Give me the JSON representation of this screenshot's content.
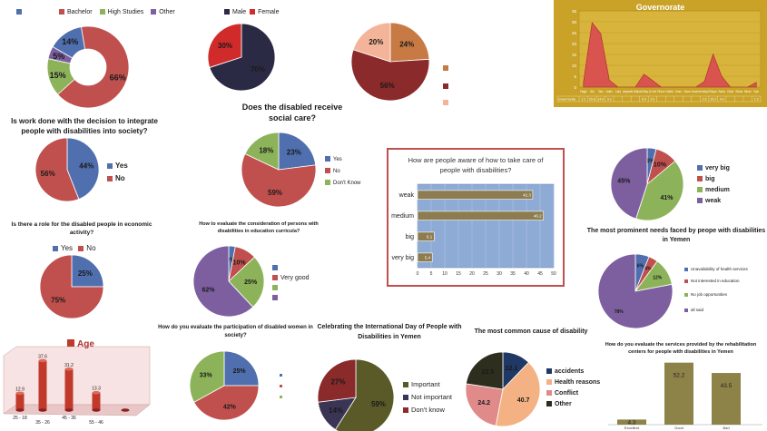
{
  "chart_data": [
    {
      "id": "education",
      "type": "pie",
      "donut": true,
      "legend": [
        "",
        "Bachelor",
        "High Studies",
        "Other"
      ],
      "slices": [
        {
          "label": "",
          "value": 14,
          "color": "#4f6fae",
          "text": "14%"
        },
        {
          "label": "Bachelor",
          "value": 66,
          "color": "#c0504d",
          "text": "66%"
        },
        {
          "label": "High Studies",
          "value": 15,
          "color": "#8db35a",
          "text": "15%"
        },
        {
          "label": "Other",
          "value": 5,
          "color": "#7d5fa0",
          "text": "5%"
        }
      ]
    },
    {
      "id": "gender",
      "type": "pie",
      "legend": [
        "Male",
        "Female"
      ],
      "slices": [
        {
          "label": "Male",
          "value": 70,
          "color": "#2a2a44",
          "text": "70%"
        },
        {
          "label": "Female",
          "value": 30,
          "color": "#d02a2a",
          "text": "30%"
        }
      ]
    },
    {
      "id": "status",
      "type": "pie",
      "slices": [
        {
          "label": "",
          "value": 24,
          "color": "#c77a44",
          "text": "24%"
        },
        {
          "label": "",
          "value": 56,
          "color": "#8b2a2a",
          "text": "56%"
        },
        {
          "label": "",
          "value": 20,
          "color": "#f4b49a",
          "text": "20%"
        }
      ]
    },
    {
      "id": "governorate",
      "type": "area",
      "title": "Governorate",
      "y_ticks": [
        0,
        5,
        10,
        15,
        20,
        25,
        30,
        35
      ],
      "ylim": [
        0,
        35
      ],
      "categories": [
        "Hajjah",
        "Ibb",
        "Taiz",
        "Aden",
        "Lahij",
        "Abyan",
        "Al Mahrah",
        "Al Bayda",
        "Al Jawf",
        "Dhamar",
        "Marib",
        "Amran",
        "Sanaa",
        "Hadramawt",
        "Al Hudaydah",
        "Raymah",
        "Sadah",
        "Al Dhale",
        "Shabwah",
        "Al Mahwit",
        "Soqatra"
      ],
      "category_labels": [
        "Hajja",
        "Ibb",
        "Taiz",
        "Aden",
        "Lahj",
        "Abyan",
        "Al Mahr",
        "Al Bay",
        "Al Jwf",
        "Dham",
        "Marib",
        "Amrn",
        "Sana",
        "Hadrm",
        "Hudyd",
        "Raym",
        "Sada",
        "Dhal",
        "Shbw",
        "Mhwt",
        "Sqtr"
      ],
      "series_label": "Governorate",
      "values": [
        2.2,
        29.6,
        24.6,
        3.2,
        0,
        0,
        0,
        5.9,
        3.0,
        0,
        0,
        0,
        0,
        0,
        2.6,
        15.2,
        4.9,
        0,
        0,
        0,
        2.2
      ],
      "table_values": [
        "2.2",
        "29.6",
        "24.6",
        "3.2",
        "",
        "",
        "",
        "5.9",
        "3.0",
        "",
        "",
        "",
        "",
        "",
        "2.6",
        "15.2",
        "4.9",
        "",
        "",
        "",
        "2.2"
      ]
    },
    {
      "id": "integrate",
      "type": "pie",
      "title": "Is work done with the decision to integrate people with disabilities into society?",
      "legend": [
        "Yes",
        "No"
      ],
      "slices": [
        {
          "label": "Yes",
          "value": 44,
          "color": "#4f6fae",
          "text": "44%"
        },
        {
          "label": "No",
          "value": 56,
          "color": "#c0504d",
          "text": "56%"
        }
      ]
    },
    {
      "id": "social_care",
      "type": "pie",
      "title": "Does the disabled receive social care?",
      "legend": [
        "Yes",
        "No",
        "Don't Know"
      ],
      "slices": [
        {
          "label": "Yes",
          "value": 23,
          "color": "#4f6fae",
          "text": "23%"
        },
        {
          "label": "No",
          "value": 59,
          "color": "#c0504d",
          "text": "59%"
        },
        {
          "label": "Don't Know",
          "value": 18,
          "color": "#8db35a",
          "text": "18%"
        }
      ]
    },
    {
      "id": "awareness",
      "type": "bar",
      "orientation": "horizontal",
      "title": "How are people aware of how to take care of people with disabilities?",
      "categories": [
        "weak",
        "medium",
        "big",
        "very big"
      ],
      "values": [
        42.3,
        46.2,
        6.1,
        5.4
      ],
      "xlim": [
        0,
        50
      ],
      "x_ticks": [
        0,
        5,
        10,
        15,
        20,
        25,
        30,
        35,
        40,
        45,
        50
      ]
    },
    {
      "id": "awareness_pie",
      "type": "pie",
      "legend": [
        "very big",
        "big",
        "medium",
        "weak"
      ],
      "slices": [
        {
          "label": "very big",
          "value": 4,
          "color": "#4f6fae",
          "text": "4%"
        },
        {
          "label": "big",
          "value": 10,
          "color": "#c0504d",
          "text": "10%"
        },
        {
          "label": "medium",
          "value": 41,
          "color": "#8db35a",
          "text": "41%"
        },
        {
          "label": "weak",
          "value": 45,
          "color": "#7d5fa0",
          "text": "45%"
        }
      ]
    },
    {
      "id": "economic",
      "type": "pie",
      "title": "Is there a role for the disabled people in economic activity?",
      "legend": [
        "Yes",
        "No"
      ],
      "slices": [
        {
          "label": "Yes",
          "value": 25,
          "color": "#4f6fae",
          "text": "25%"
        },
        {
          "label": "No",
          "value": 75,
          "color": "#c0504d",
          "text": "75%"
        }
      ]
    },
    {
      "id": "curricula",
      "type": "pie",
      "title": "How to evaluate the consideration of persons with disabilities in education curricula?",
      "legend": [
        "",
        "Very good",
        "",
        ""
      ],
      "slices": [
        {
          "label": "",
          "value": 3,
          "color": "#4f6fae",
          "text": "3%"
        },
        {
          "label": "Very good",
          "value": 10,
          "color": "#c0504d",
          "text": "10%"
        },
        {
          "label": "",
          "value": 25,
          "color": "#8db35a",
          "text": "25%"
        },
        {
          "label": "",
          "value": 62,
          "color": "#7d5fa0",
          "text": "62%"
        }
      ]
    },
    {
      "id": "needs",
      "type": "pie",
      "title": "The most prominent needs faced by peope with disabilities in Yemen",
      "legend": [
        "Unavailability of health services",
        "Not interested in education",
        "No job opportunities",
        "all said"
      ],
      "slices": [
        {
          "label": "Unavailability of health services",
          "value": 6,
          "color": "#4f6fae",
          "text": "6%"
        },
        {
          "label": "Not interested in education",
          "value": 4,
          "color": "#c0504d",
          "text": "4%"
        },
        {
          "label": "No job opportunities",
          "value": 12,
          "color": "#8db35a",
          "text": "12%"
        },
        {
          "label": "all said",
          "value": 78,
          "color": "#7d5fa0",
          "text": "78%"
        }
      ]
    },
    {
      "id": "age",
      "type": "bar",
      "title": "Age",
      "categories": [
        "25 - 18",
        "35 - 26",
        "45 - 36",
        "55 - 46",
        ""
      ],
      "values": [
        12.9,
        37.6,
        31.2,
        13.3,
        0
      ]
    },
    {
      "id": "women",
      "type": "pie",
      "title": "How do you evaluate the participation of disabled women in society?",
      "slices": [
        {
          "label": "",
          "value": 25,
          "color": "#4f6fae",
          "text": "25%"
        },
        {
          "label": "",
          "value": 42,
          "color": "#c0504d",
          "text": "42%"
        },
        {
          "label": "",
          "value": 33,
          "color": "#8db35a",
          "text": "33%"
        }
      ]
    },
    {
      "id": "intl_day",
      "type": "pie",
      "title": "Celebrating the International Day of People with Disabilities in Yemen",
      "legend": [
        "Important",
        "Not important",
        "Don't know"
      ],
      "slices": [
        {
          "label": "Important",
          "value": 59,
          "color": "#5a5a28",
          "text": "59%"
        },
        {
          "label": "Not important",
          "value": 14,
          "color": "#3b3555",
          "text": "14%"
        },
        {
          "label": "Don't know",
          "value": 27,
          "color": "#8b2a2a",
          "text": "27%"
        }
      ]
    },
    {
      "id": "cause",
      "type": "pie",
      "title": "The most common cause of disability",
      "legend": [
        "accidents",
        "Health reasons",
        "Conflict",
        "Other"
      ],
      "slices": [
        {
          "label": "accidents",
          "value": 12.1,
          "color": "#1f3864",
          "text": "12.1"
        },
        {
          "label": "Health reasons",
          "value": 40.7,
          "color": "#f4b183",
          "text": "40.7"
        },
        {
          "label": "Conflict",
          "value": 24.2,
          "color": "#e08a8a",
          "text": "24.2"
        },
        {
          "label": "Other",
          "value": 22.5,
          "color": "#2e2e1e",
          "text": "22.5"
        }
      ]
    },
    {
      "id": "services",
      "type": "bar",
      "title": "How do you evaluate the services provided by the rehabilitation centers for people with disabilities in Yemen",
      "categories": [
        "Excellent",
        "Good",
        "Bad"
      ],
      "values": [
        4.3,
        52.2,
        43.5
      ]
    }
  ]
}
